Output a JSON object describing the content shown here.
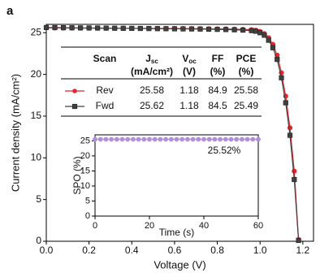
{
  "panel_label": "a",
  "chart_data": [
    {
      "type": "line",
      "xlabel": "Voltage (V)",
      "ylabel": "Current density (mA/cm²)",
      "x": [
        0,
        0.04,
        0.08,
        0.12,
        0.16,
        0.2,
        0.24,
        0.28,
        0.32,
        0.36,
        0.4,
        0.44,
        0.48,
        0.52,
        0.56,
        0.6,
        0.64,
        0.68,
        0.72,
        0.76,
        0.8,
        0.84,
        0.88,
        0.92,
        0.96,
        0.98,
        1.0,
        1.02,
        1.04,
        1.06,
        1.08,
        1.1,
        1.12,
        1.14,
        1.16,
        1.18
      ],
      "series": [
        {
          "name": "Rev",
          "color": "#e2282d",
          "marker": "circle",
          "values": [
            25.58,
            25.57,
            25.56,
            25.56,
            25.55,
            25.55,
            25.54,
            25.54,
            25.53,
            25.53,
            25.52,
            25.52,
            25.51,
            25.51,
            25.5,
            25.5,
            25.49,
            25.49,
            25.48,
            25.47,
            25.46,
            25.45,
            25.43,
            25.4,
            25.36,
            25.3,
            25.15,
            24.9,
            24.4,
            23.6,
            22.3,
            20.2,
            17.4,
            13.6,
            8.4,
            0.2
          ]
        },
        {
          "name": "Fwd",
          "color": "#404040",
          "marker": "square",
          "values": [
            25.62,
            25.61,
            25.6,
            25.59,
            25.58,
            25.57,
            25.56,
            25.55,
            25.54,
            25.53,
            25.52,
            25.51,
            25.5,
            25.49,
            25.48,
            25.47,
            25.46,
            25.45,
            25.44,
            25.42,
            25.4,
            25.38,
            25.35,
            25.31,
            25.25,
            25.18,
            25.0,
            24.7,
            24.1,
            23.2,
            21.8,
            19.6,
            16.6,
            12.7,
            7.4,
            0.1
          ]
        }
      ],
      "xlim": [
        0,
        1.25
      ],
      "ylim": [
        0,
        26
      ],
      "xticks": [
        {
          "value": 0,
          "label": "0.0"
        },
        0.2,
        0.4,
        0.6,
        0.8,
        {
          "value": 1,
          "label": "1.0"
        },
        1.2
      ],
      "yticks": [
        0,
        5,
        10,
        15,
        20,
        25
      ]
    },
    {
      "type": "line",
      "xlabel": "Time (s)",
      "ylabel": "SPO (%)",
      "annotation": "25.52%",
      "x": [
        0,
        2,
        4,
        6,
        8,
        10,
        12,
        14,
        16,
        18,
        20,
        22,
        24,
        26,
        28,
        30,
        32,
        34,
        36,
        38,
        40,
        42,
        44,
        46,
        48,
        50,
        52,
        54,
        56,
        58,
        60
      ],
      "series": [
        {
          "color": "#b58de0",
          "marker": "circle",
          "values": [
            25.52,
            25.52,
            25.52,
            25.52,
            25.52,
            25.52,
            25.52,
            25.52,
            25.52,
            25.52,
            25.52,
            25.52,
            25.52,
            25.52,
            25.52,
            25.52,
            25.52,
            25.52,
            25.52,
            25.52,
            25.52,
            25.52,
            25.52,
            25.52,
            25.52,
            25.52,
            25.52,
            25.52,
            25.52,
            25.52,
            25.52
          ]
        }
      ],
      "xlim": [
        0,
        60
      ],
      "ylim": [
        0,
        27
      ],
      "xticks": [
        0,
        20,
        40,
        60
      ],
      "yticks": [
        0,
        5,
        10,
        15,
        20,
        25
      ]
    }
  ],
  "table": {
    "header": [
      {
        "text": "Scan"
      },
      {
        "text": "J",
        "sub": "sc",
        "unit": "(mA/cm²)"
      },
      {
        "text": "V",
        "sub": "oc",
        "unit": "(V)"
      },
      {
        "text": "FF",
        "unit": "(%)"
      },
      {
        "text": "PCE",
        "unit": "(%)"
      }
    ],
    "rows": [
      [
        25.58,
        1.18,
        84.9,
        25.58
      ],
      [
        25.62,
        1.18,
        84.5,
        25.49
      ]
    ]
  }
}
